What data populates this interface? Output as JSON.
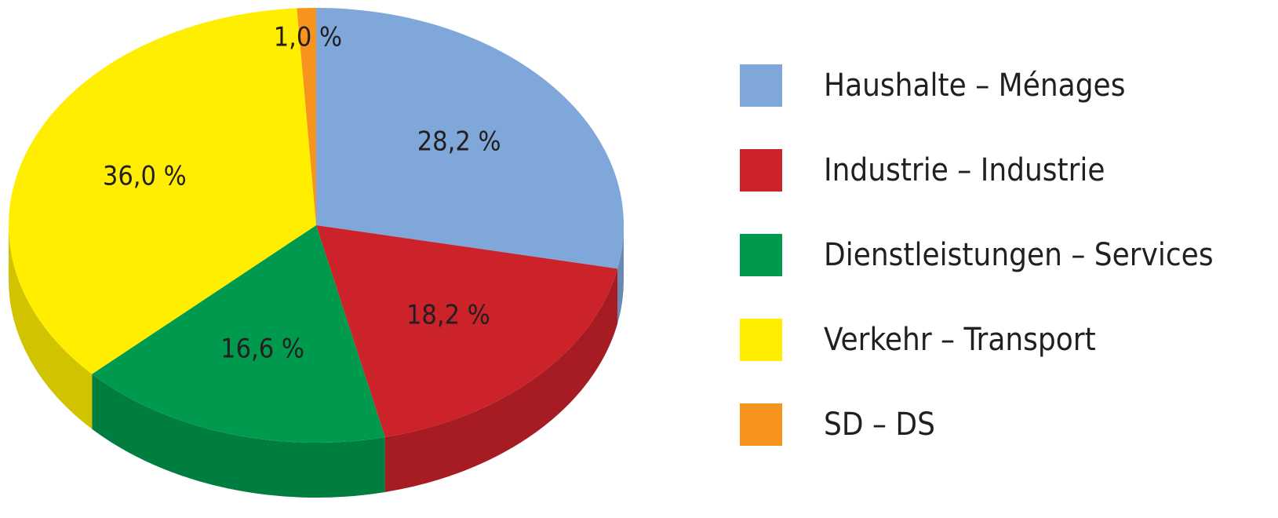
{
  "chart_data": {
    "type": "pie",
    "categories": [
      "Haushalte – Ménages",
      "Industrie – Industrie",
      "Dienstleistungen – Services",
      "Verkehr – Transport",
      "SD – DS"
    ],
    "values": [
      28.2,
      18.2,
      16.6,
      36.0,
      1.0
    ],
    "value_labels": [
      "28,2 %",
      "18,2 %",
      "16,6 %",
      "36,0 %",
      "1,0 %"
    ],
    "colors": [
      "#7fa7d9",
      "#cc2229",
      "#009a4e",
      "#ffee00",
      "#f7941d"
    ]
  }
}
